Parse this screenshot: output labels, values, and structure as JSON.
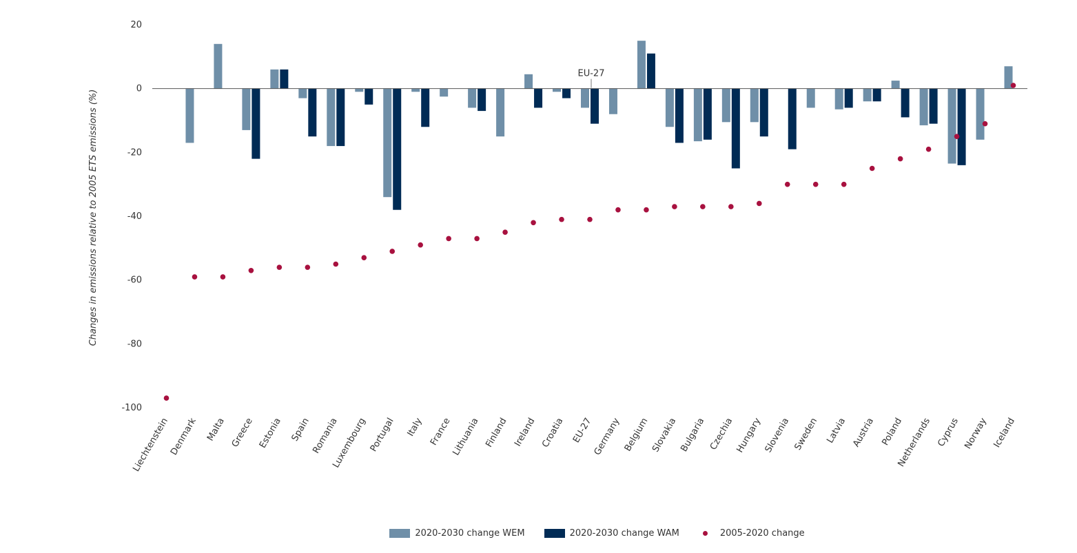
{
  "chart_data": {
    "type": "bar",
    "ylabel": "Changes in emissions relative to 2005 ETS emissions (%)",
    "xlabel": "",
    "ylim": [
      -100,
      20
    ],
    "yticks": [
      20,
      0,
      -20,
      -40,
      -60,
      -80,
      -100
    ],
    "categories": [
      "Liechtenstein",
      "Denmark",
      "Malta",
      "Greece",
      "Estonia",
      "Spain",
      "Romania",
      "Luxembourg",
      "Portugal",
      "Italy",
      "France",
      "Lithuania",
      "Finland",
      "Ireland",
      "Croatia",
      "EU-27",
      "Germany",
      "Belgium",
      "Slovakia",
      "Bulgaria",
      "Czechia",
      "Hungary",
      "Slovenia",
      "Sweden",
      "Latvia",
      "Austria",
      "Poland",
      "Netherlands",
      "Cyprus",
      "Norway",
      "Iceland"
    ],
    "series": [
      {
        "name": "2020-2030 change WEM",
        "kind": "bar",
        "color": "#6f8fa8",
        "values": [
          0,
          -17,
          14,
          -13,
          6,
          -3,
          -18,
          -1,
          -34,
          -1,
          -2.5,
          -6,
          -15,
          4.5,
          -1,
          -6,
          -8,
          15,
          -12,
          -16.5,
          -10.5,
          -10.5,
          0,
          -6,
          -6.5,
          -4,
          2.5,
          -11.5,
          -23.5,
          -16,
          7
        ]
      },
      {
        "name": "2020-2030 change WAM",
        "kind": "bar",
        "color": "#002b55",
        "values": [
          0,
          0,
          0,
          -22,
          6,
          -15,
          -18,
          -5,
          -38,
          -12,
          0,
          -7,
          0,
          -6,
          -3,
          -11,
          0,
          11,
          -17,
          -16,
          -25,
          -15,
          -19,
          0,
          -6,
          -4,
          -9,
          -11,
          -24,
          0,
          0
        ]
      },
      {
        "name": "2005-2020 change",
        "kind": "scatter",
        "color": "#a8113f",
        "values": [
          -97,
          -59,
          -59,
          -57,
          -56,
          -56,
          -55,
          -53,
          -51,
          -49,
          -47,
          -47,
          -45,
          -42,
          -41,
          -41,
          -38,
          -38,
          -37,
          -37,
          -37,
          -36,
          -30,
          -30,
          -30,
          -25,
          -22,
          -19,
          -15,
          -11,
          1
        ]
      }
    ],
    "annotations": [
      {
        "text": "EU-27",
        "category": "EU-27"
      }
    ],
    "grid": false,
    "legend": "bottom-center"
  }
}
